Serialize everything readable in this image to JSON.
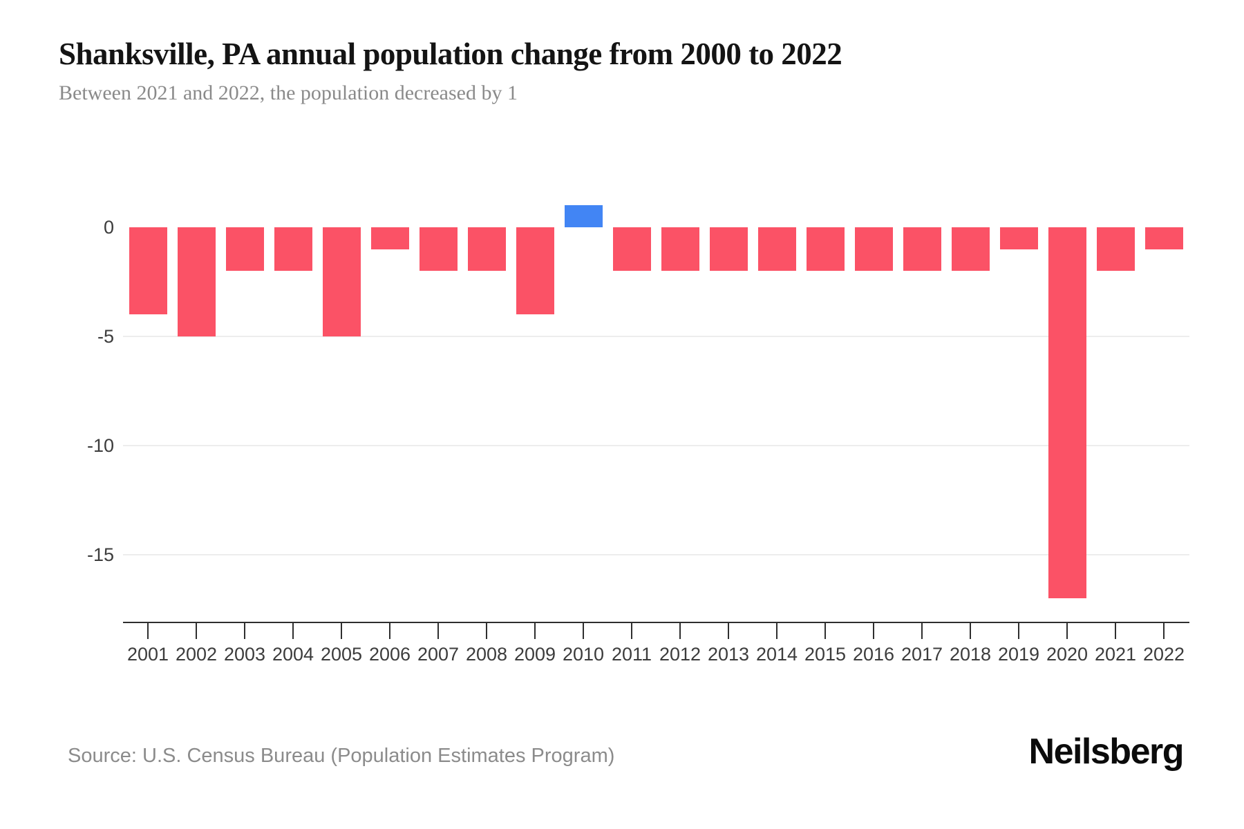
{
  "header": {
    "title": "Shanksville, PA annual population change from 2000 to 2022",
    "subtitle": "Between 2021 and 2022, the population decreased by 1"
  },
  "footer": {
    "source": "Source: U.S. Census Bureau (Population Estimates Program)",
    "brand": "Neilsberg"
  },
  "chart_data": {
    "type": "bar",
    "title": "Shanksville, PA annual population change from 2000 to 2022",
    "subtitle": "Between 2021 and 2022, the population decreased by 1",
    "categories": [
      "2001",
      "2002",
      "2003",
      "2004",
      "2005",
      "2006",
      "2007",
      "2008",
      "2009",
      "2010",
      "2011",
      "2012",
      "2013",
      "2014",
      "2015",
      "2016",
      "2017",
      "2018",
      "2019",
      "2020",
      "2021",
      "2022"
    ],
    "values": [
      -4,
      -5,
      -2,
      -2,
      -5,
      -1,
      -2,
      -2,
      -4,
      1,
      -2,
      -2,
      -2,
      -2,
      -2,
      -2,
      -2,
      -2,
      -1,
      -17,
      -2,
      -1
    ],
    "xlabel": "",
    "ylabel": "",
    "y_ticks": [
      {
        "label": "0",
        "value": 0
      },
      {
        "label": "-5",
        "value": -5
      },
      {
        "label": "-10",
        "value": -10
      },
      {
        "label": "-15",
        "value": -15
      }
    ],
    "ylim": [
      1.5,
      -18
    ],
    "grid": "horizontal-only",
    "legend": "none",
    "colors": {
      "negative_bar": "#FB5266",
      "positive_bar": "#4285F4",
      "gridline": "#ededed",
      "axis": "#2e2e2e",
      "tick_label": "#3c3c3c"
    }
  }
}
